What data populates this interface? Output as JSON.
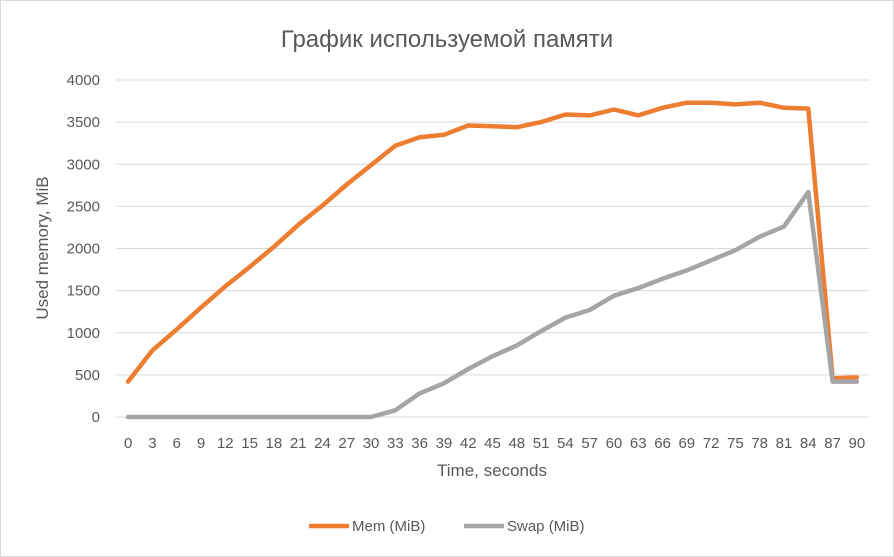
{
  "chart_data": {
    "type": "line",
    "title": "График используемой памяти",
    "xlabel": "Time, seconds",
    "ylabel": "Used memory, MiB",
    "ylim": [
      0,
      4000
    ],
    "yticks": [
      0,
      500,
      1000,
      1500,
      2000,
      2500,
      3000,
      3500,
      4000
    ],
    "grid": true,
    "legend_position": "bottom",
    "x": [
      0,
      3,
      6,
      9,
      12,
      15,
      18,
      21,
      24,
      27,
      30,
      33,
      36,
      39,
      42,
      45,
      48,
      51,
      54,
      57,
      60,
      63,
      66,
      69,
      72,
      75,
      78,
      81,
      84,
      87,
      90
    ],
    "series": [
      {
        "name": "Mem (MiB)",
        "color": "#ed7d31",
        "values": [
          420,
          790,
          1040,
          1300,
          1550,
          1780,
          2020,
          2280,
          2510,
          2760,
          2990,
          3220,
          3320,
          3350,
          3460,
          3450,
          3440,
          3500,
          3590,
          3580,
          3650,
          3580,
          3670,
          3730,
          3730,
          3710,
          3730,
          3670,
          3660,
          460,
          470
        ]
      },
      {
        "name": "Swap (MiB)",
        "color": "#a5a5a5",
        "values": [
          0,
          0,
          0,
          0,
          0,
          0,
          0,
          0,
          0,
          0,
          0,
          80,
          280,
          400,
          570,
          720,
          850,
          1020,
          1180,
          1270,
          1440,
          1530,
          1640,
          1740,
          1860,
          1980,
          2140,
          2260,
          2670,
          420,
          420
        ]
      }
    ]
  }
}
